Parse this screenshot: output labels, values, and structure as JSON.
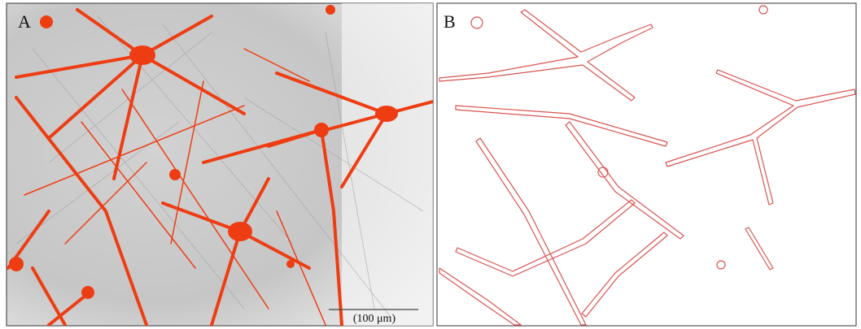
{
  "panels": [
    {
      "label": "A",
      "scale_bar": "(100 μm)"
    },
    {
      "label": "B"
    }
  ]
}
